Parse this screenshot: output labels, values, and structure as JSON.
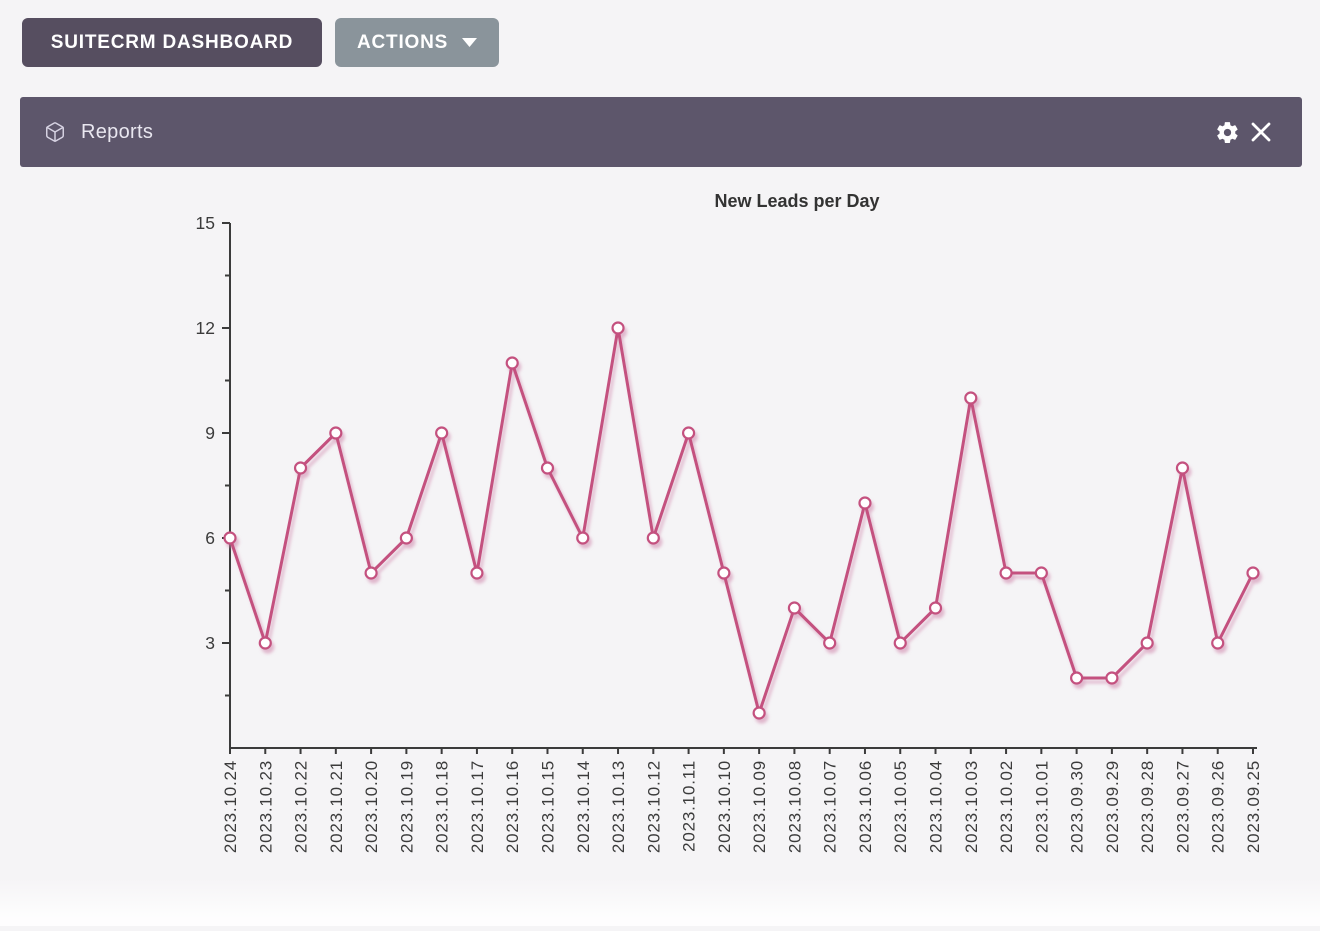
{
  "topbar": {
    "dashboard_button": "SUITECRM DASHBOARD",
    "actions_button": "ACTIONS",
    "actions_caret_icon": "caret-down-icon"
  },
  "panel": {
    "title": "Reports",
    "left_icon": "cube-icon",
    "right_icons": [
      "settings-gear-icon",
      "close-icon"
    ]
  },
  "colors": {
    "page_bg": "#f5f4f6",
    "header_bg": "#5d566b",
    "dashboard_btn_bg": "#564e60",
    "actions_btn_bg": "#8a949b",
    "header_text": "#e9e7f0",
    "line": "#c4517f",
    "line_shadow": "#cf86ab",
    "marker_fill": "#ffffff",
    "axis": "#3b3b3b",
    "label": "#3b3b3b",
    "title": "#333333"
  },
  "chart_data": {
    "type": "line",
    "title": "New Leads per Day",
    "xlabel": "",
    "ylabel": "",
    "ylim": [
      0,
      15
    ],
    "yticks": [
      3,
      6,
      9,
      12,
      15
    ],
    "yticks_minor": [
      1.5,
      4.5,
      7.5,
      10.5,
      13.5
    ],
    "grid": false,
    "legend": "none",
    "marker": "open-circle",
    "categories": [
      "2023.10.24",
      "2023.10.23",
      "2023.10.22",
      "2023.10.21",
      "2023.10.20",
      "2023.10.19",
      "2023.10.18",
      "2023.10.17",
      "2023.10.16",
      "2023.10.15",
      "2023.10.14",
      "2023.10.13",
      "2023.10.12",
      "2023.10.11",
      "2023.10.10",
      "2023.10.09",
      "2023.10.08",
      "2023.10.07",
      "2023.10.06",
      "2023.10.05",
      "2023.10.04",
      "2023.10.03",
      "2023.10.02",
      "2023.10.01",
      "2023.09.30",
      "2023.09.29",
      "2023.09.28",
      "2023.09.27",
      "2023.09.26",
      "2023.09.25"
    ],
    "values": [
      6,
      3,
      8,
      9,
      5,
      6,
      9,
      5,
      11,
      8,
      6,
      12,
      6,
      9,
      5,
      1,
      4,
      3,
      7,
      3,
      4,
      10,
      5,
      5,
      2,
      2,
      3,
      8,
      3,
      5
    ]
  }
}
